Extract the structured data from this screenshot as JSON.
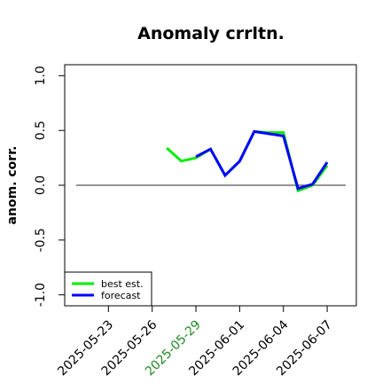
{
  "chart_data": {
    "type": "line",
    "title": "Anomaly crrltn.",
    "y_label": "anom. corr.",
    "x": [
      "2025-05-27",
      "2025-05-28",
      "2025-05-29",
      "2025-05-30",
      "2025-05-31",
      "2025-06-01",
      "2025-06-02",
      "2025-06-03",
      "2025-06-04",
      "2025-06-05",
      "2025-06-06",
      "2025-06-07"
    ],
    "series": [
      {
        "name": "best est.",
        "color": "#00ee00",
        "values": [
          0.34,
          0.22,
          0.25,
          0.33,
          0.09,
          0.22,
          0.49,
          0.48,
          0.48,
          -0.05,
          0.0,
          0.18
        ]
      },
      {
        "name": "forecast",
        "color": "#0000ff",
        "values": [
          null,
          null,
          0.26,
          0.33,
          0.09,
          0.22,
          0.49,
          0.47,
          0.45,
          -0.03,
          0.01,
          0.21
        ]
      }
    ],
    "xlim": [
      "2025-05-20",
      "2025-06-09"
    ],
    "xticks": [
      "2025-05-23",
      "2025-05-26",
      "2025-05-29",
      "2025-06-01",
      "2025-06-04",
      "2025-06-07"
    ],
    "xtick_colors": [
      "#000000",
      "#000000",
      "#228b22",
      "#000000",
      "#000000",
      "#000000"
    ],
    "ylim": [
      -1.1,
      1.1
    ],
    "yticks": [
      {
        "value": -1,
        "label": "-1.0"
      },
      {
        "value": -0.5,
        "label": "-0.5"
      },
      {
        "value": 0,
        "label": "0.0"
      },
      {
        "value": 0.5,
        "label": "0.5"
      },
      {
        "value": 1,
        "label": "1.0"
      }
    ],
    "hline": 0,
    "legend": "lower left"
  }
}
